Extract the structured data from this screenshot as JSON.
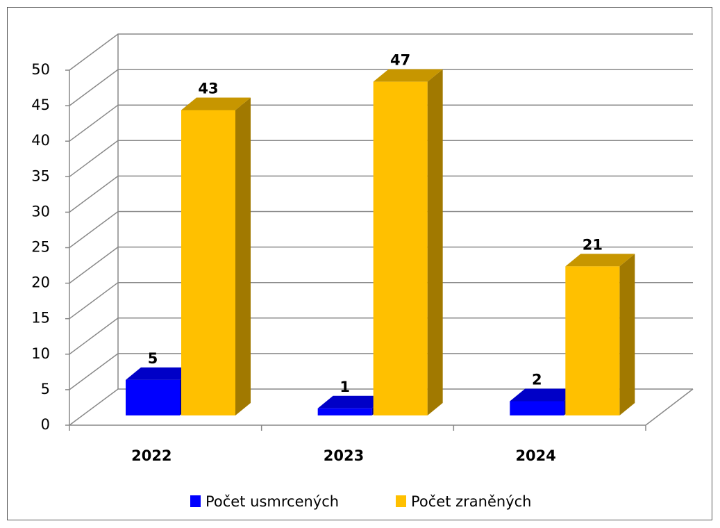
{
  "chart_data": {
    "type": "bar",
    "categories": [
      "2022",
      "2023",
      "2024"
    ],
    "series": [
      {
        "name": "Počet usmrcených",
        "color": "#0000ff",
        "values": [
          5,
          1,
          2
        ]
      },
      {
        "name": "Počet zraněných",
        "color": "#ffc000",
        "values": [
          43,
          47,
          21
        ]
      }
    ],
    "ylim": [
      0,
      50
    ],
    "yticks": [
      0,
      5,
      10,
      15,
      20,
      25,
      30,
      35,
      40,
      45,
      50
    ],
    "grid": true,
    "legend": "bottom"
  }
}
